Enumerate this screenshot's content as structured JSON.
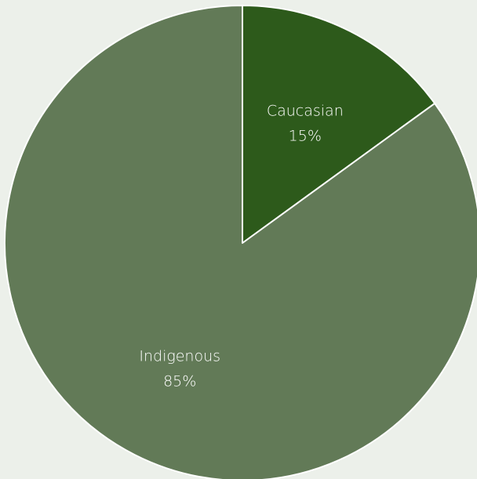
{
  "chart_data": {
    "type": "pie",
    "start_angle_deg": 0,
    "direction": "clockwise",
    "slices": [
      {
        "label": "Caucasian",
        "value": 15,
        "display": "15%",
        "color": "#2d5a1b"
      },
      {
        "label": "Indigenous",
        "value": 85,
        "display": "85%",
        "color": "#627a57"
      }
    ],
    "slice_border_color": "#ffffff",
    "background_color": "#ecf0ea"
  }
}
